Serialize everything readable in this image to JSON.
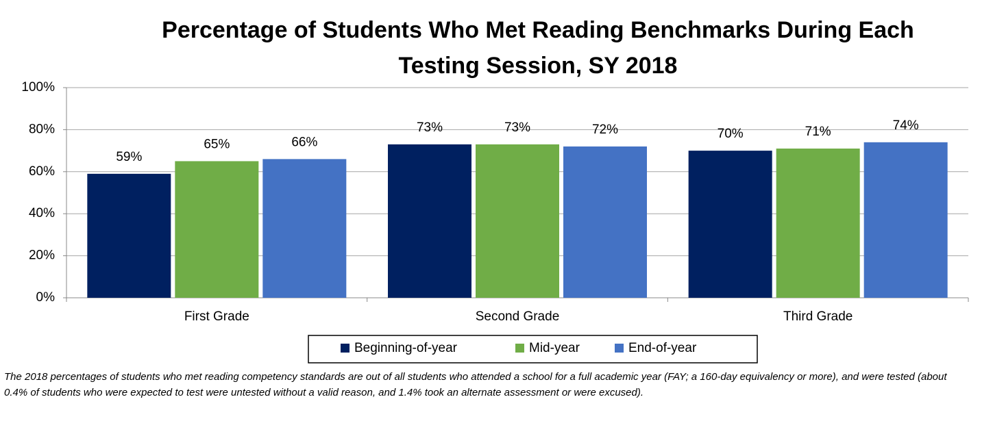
{
  "chart_data": {
    "type": "bar",
    "title": "Percentage of Students Who Met Reading Benchmarks During Each Testing Session, SY 2018",
    "categories": [
      "First Grade",
      "Second Grade",
      "Third Grade"
    ],
    "series": [
      {
        "name": "Beginning-of-year",
        "color": "#002060",
        "values": [
          59,
          73,
          70
        ],
        "value_labels": [
          "59%",
          "73%",
          "70%"
        ]
      },
      {
        "name": "Mid-year",
        "color": "#70ad47",
        "values": [
          65,
          73,
          71
        ],
        "value_labels": [
          "65%",
          "73%",
          "71%"
        ]
      },
      {
        "name": "End-of-year",
        "color": "#4472c4",
        "values": [
          66,
          72,
          74
        ],
        "value_labels": [
          "66%",
          "72%",
          "74%"
        ]
      }
    ],
    "ylim": [
      0,
      100
    ],
    "yticks": [
      {
        "value": 0,
        "label": "0%"
      },
      {
        "value": 20,
        "label": "20%"
      },
      {
        "value": 40,
        "label": "40%"
      },
      {
        "value": 60,
        "label": "60%"
      },
      {
        "value": 80,
        "label": "80%"
      },
      {
        "value": 100,
        "label": "100%"
      }
    ],
    "grid": true,
    "legend": "bottom",
    "footnote": "The 2018 percentages of students who met reading competency standards are out of all students who attended a school for a full academic year (FAY; a 160-day equivalency or more), and were tested (about 0.4% of students who were expected to test were untested without a valid reason, and 1.4% took an alternate assessment or were excused)."
  }
}
